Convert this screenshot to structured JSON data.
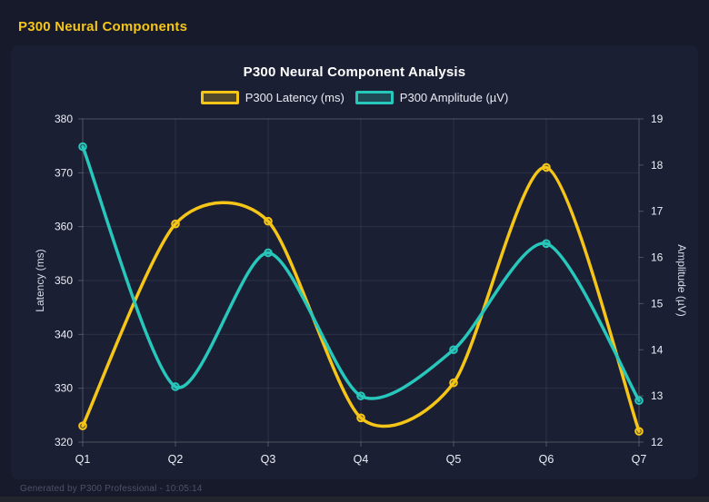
{
  "page": {
    "header": "P300 Neural Components",
    "footer": "Generated by P300 Professional - 10:05:14"
  },
  "colors": {
    "page_bg": "#171a2b",
    "card_bg": "#1b1f33",
    "grid": "rgba(255,255,255,0.08)",
    "axis_border": "rgba(255,255,255,0.22)",
    "tick_text": "#eceef6",
    "axis_title_text": "#d8dce9",
    "title_text": "#ffffff",
    "header_text": "#f5c518",
    "footer_text": "#4d5268",
    "bottom_strip": "#24262e"
  },
  "chart_data": {
    "type": "line",
    "title": "P300 Neural Component Analysis",
    "categories": [
      "Q1",
      "Q2",
      "Q3",
      "Q4",
      "Q5",
      "Q6",
      "Q7"
    ],
    "series": [
      {
        "name": "P300 Latency (ms)",
        "id": "latency",
        "axis": "left",
        "color": "#f5c518",
        "values": [
          323,
          360.5,
          361,
          324.5,
          331,
          371,
          322
        ]
      },
      {
        "name": "P300 Amplitude (µV)",
        "id": "amplitude",
        "axis": "right",
        "color": "#28c7bb",
        "values": [
          18.4,
          13.2,
          16.1,
          13.0,
          14.0,
          16.3,
          12.9
        ]
      }
    ],
    "left_axis": {
      "label": "Latency (ms)",
      "min": 320,
      "max": 380,
      "step": 10
    },
    "right_axis": {
      "label": "Amplitude (µV)",
      "min": 12,
      "max": 19,
      "step": 1
    },
    "grid": true,
    "legend_position": "top",
    "line_tension": 0.4
  }
}
